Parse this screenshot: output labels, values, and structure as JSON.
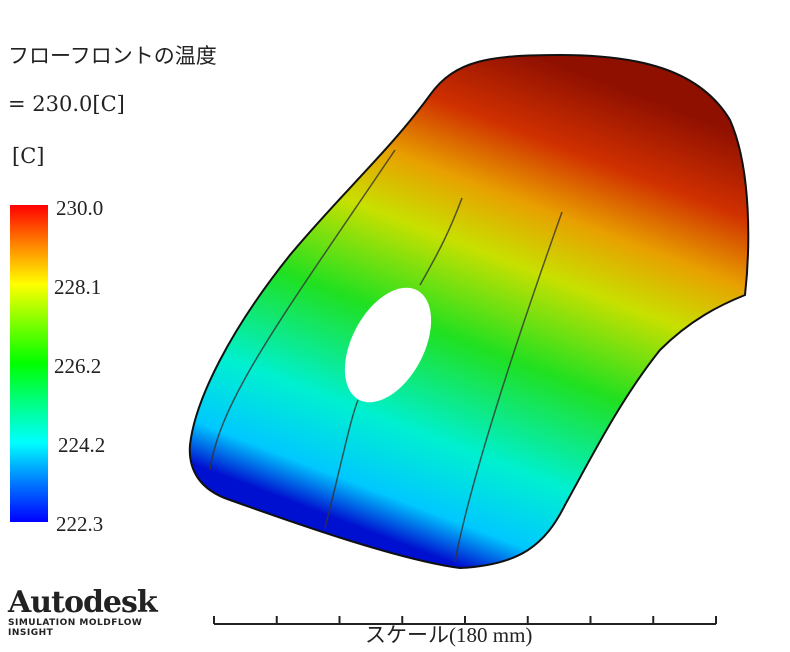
{
  "header": {
    "title": "フローフロントの温度",
    "value_line": " = 230.0[C]",
    "unit": "[C]"
  },
  "legend": {
    "labels": [
      "230.0",
      "228.1",
      "226.2",
      "224.2",
      "222.3"
    ],
    "colors": [
      "#ff0000",
      "#ffff00",
      "#00ff00",
      "#00ffff",
      "#0000ff"
    ]
  },
  "logo": {
    "brand": "Autodesk",
    "product_line1": "SIMULATION MOLDFLOW",
    "product_line2": "INSIGHT"
  },
  "scale": {
    "label": "スケール(180 mm)"
  }
}
